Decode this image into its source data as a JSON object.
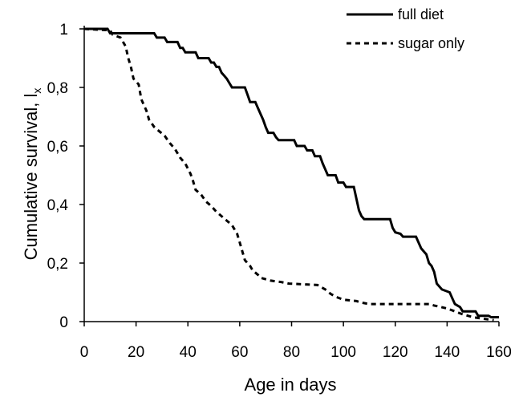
{
  "chart_data": {
    "type": "line",
    "title": "",
    "xlabel": "Age in days",
    "ylabel": "Cumulative survival, l",
    "ylabel_subscript": "x",
    "xlim": [
      0,
      160
    ],
    "ylim": [
      0,
      1
    ],
    "x_ticks": [
      0,
      20,
      40,
      60,
      80,
      100,
      120,
      140,
      160
    ],
    "x_tick_labels": [
      "0",
      "20",
      "40",
      "60",
      "80",
      "100",
      "120",
      "140",
      "160"
    ],
    "y_ticks": [
      0,
      0.2,
      0.4,
      0.6,
      0.8,
      1
    ],
    "y_tick_labels": [
      "0",
      "0,2",
      "0,4",
      "0,6",
      "0,8",
      "1"
    ],
    "grid": false,
    "legend_position": "top-right",
    "series": [
      {
        "name": "full diet",
        "style": "solid",
        "color": "#000000",
        "points": [
          [
            0,
            1.0
          ],
          [
            9,
            1.0
          ],
          [
            10,
            0.985
          ],
          [
            27,
            0.985
          ],
          [
            28,
            0.97
          ],
          [
            31,
            0.97
          ],
          [
            32,
            0.955
          ],
          [
            36,
            0.955
          ],
          [
            37,
            0.935
          ],
          [
            38,
            0.935
          ],
          [
            39,
            0.92
          ],
          [
            43,
            0.92
          ],
          [
            44,
            0.9
          ],
          [
            48,
            0.9
          ],
          [
            49,
            0.885
          ],
          [
            50,
            0.885
          ],
          [
            51,
            0.87
          ],
          [
            52,
            0.87
          ],
          [
            53,
            0.85
          ],
          [
            54,
            0.84
          ],
          [
            55,
            0.83
          ],
          [
            56,
            0.815
          ],
          [
            57,
            0.8
          ],
          [
            62,
            0.8
          ],
          [
            63,
            0.775
          ],
          [
            64,
            0.75
          ],
          [
            66,
            0.75
          ],
          [
            67,
            0.73
          ],
          [
            68,
            0.71
          ],
          [
            69,
            0.69
          ],
          [
            70,
            0.665
          ],
          [
            71,
            0.645
          ],
          [
            73,
            0.645
          ],
          [
            74,
            0.63
          ],
          [
            75,
            0.62
          ],
          [
            81,
            0.62
          ],
          [
            82,
            0.6
          ],
          [
            85,
            0.6
          ],
          [
            86,
            0.585
          ],
          [
            88,
            0.585
          ],
          [
            89,
            0.565
          ],
          [
            91,
            0.565
          ],
          [
            92,
            0.54
          ],
          [
            93,
            0.52
          ],
          [
            94,
            0.5
          ],
          [
            97,
            0.5
          ],
          [
            98,
            0.475
          ],
          [
            100,
            0.475
          ],
          [
            101,
            0.46
          ],
          [
            104,
            0.46
          ],
          [
            105,
            0.42
          ],
          [
            106,
            0.38
          ],
          [
            107,
            0.36
          ],
          [
            108,
            0.35
          ],
          [
            118,
            0.35
          ],
          [
            119,
            0.32
          ],
          [
            120,
            0.305
          ],
          [
            122,
            0.3
          ],
          [
            123,
            0.29
          ],
          [
            128,
            0.29
          ],
          [
            129,
            0.27
          ],
          [
            130,
            0.25
          ],
          [
            132,
            0.23
          ],
          [
            133,
            0.2
          ],
          [
            134,
            0.19
          ],
          [
            135,
            0.17
          ],
          [
            136,
            0.13
          ],
          [
            138,
            0.11
          ],
          [
            141,
            0.1
          ],
          [
            142,
            0.08
          ],
          [
            143,
            0.06
          ],
          [
            145,
            0.05
          ],
          [
            146,
            0.035
          ],
          [
            151,
            0.035
          ],
          [
            152,
            0.02
          ],
          [
            156,
            0.02
          ],
          [
            157,
            0.015
          ],
          [
            160,
            0.015
          ]
        ]
      },
      {
        "name": "sugar only",
        "style": "dashed",
        "color": "#000000",
        "points": [
          [
            0,
            1.0
          ],
          [
            10,
            0.995
          ],
          [
            11,
            0.98
          ],
          [
            14,
            0.97
          ],
          [
            16,
            0.94
          ],
          [
            17,
            0.9
          ],
          [
            18,
            0.87
          ],
          [
            19,
            0.83
          ],
          [
            21,
            0.81
          ],
          [
            22,
            0.76
          ],
          [
            24,
            0.72
          ],
          [
            25,
            0.69
          ],
          [
            27,
            0.665
          ],
          [
            29,
            0.65
          ],
          [
            31,
            0.635
          ],
          [
            33,
            0.61
          ],
          [
            35,
            0.59
          ],
          [
            37,
            0.56
          ],
          [
            39,
            0.54
          ],
          [
            41,
            0.505
          ],
          [
            42,
            0.48
          ],
          [
            43,
            0.45
          ],
          [
            45,
            0.435
          ],
          [
            47,
            0.41
          ],
          [
            49,
            0.395
          ],
          [
            51,
            0.375
          ],
          [
            53,
            0.36
          ],
          [
            55,
            0.345
          ],
          [
            57,
            0.33
          ],
          [
            59,
            0.3
          ],
          [
            60,
            0.27
          ],
          [
            61,
            0.24
          ],
          [
            62,
            0.21
          ],
          [
            64,
            0.19
          ],
          [
            65,
            0.175
          ],
          [
            67,
            0.16
          ],
          [
            68,
            0.15
          ],
          [
            72,
            0.14
          ],
          [
            76,
            0.135
          ],
          [
            79,
            0.13
          ],
          [
            90,
            0.125
          ],
          [
            93,
            0.11
          ],
          [
            95,
            0.095
          ],
          [
            97,
            0.085
          ],
          [
            100,
            0.075
          ],
          [
            105,
            0.07
          ],
          [
            107,
            0.065
          ],
          [
            110,
            0.06
          ],
          [
            133,
            0.06
          ],
          [
            135,
            0.055
          ],
          [
            140,
            0.045
          ],
          [
            143,
            0.035
          ],
          [
            146,
            0.025
          ],
          [
            150,
            0.015
          ],
          [
            154,
            0.01
          ],
          [
            158,
            0.005
          ]
        ]
      }
    ]
  }
}
